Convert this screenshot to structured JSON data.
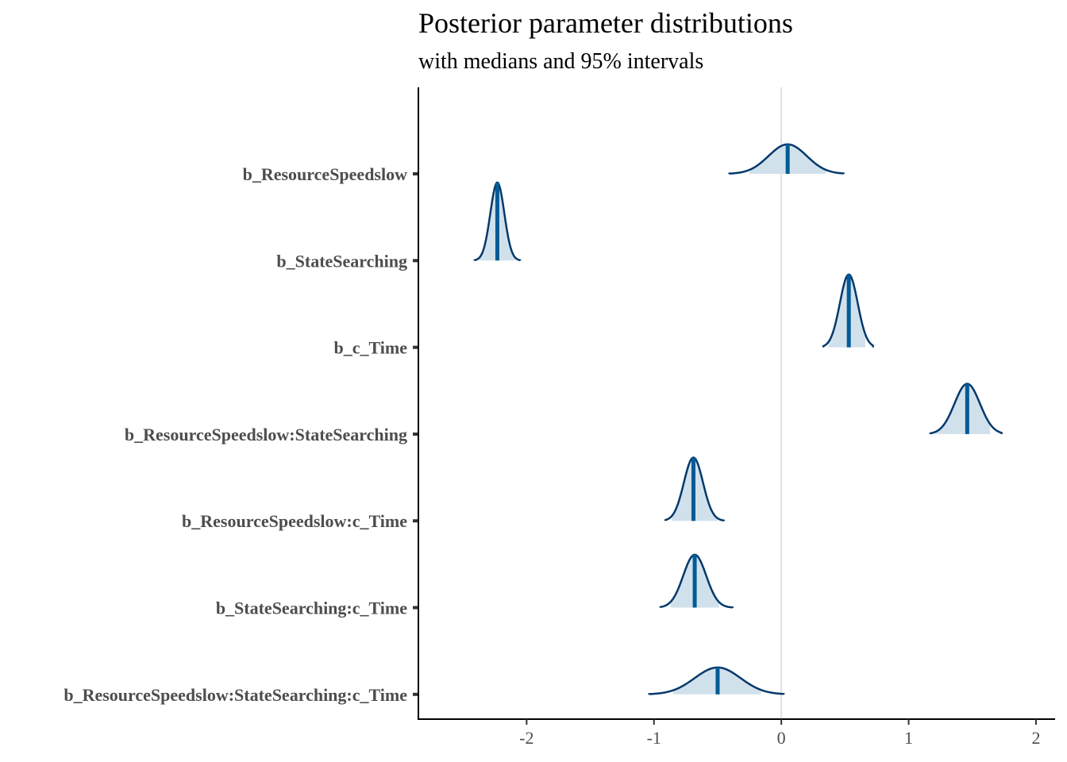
{
  "chart_data": {
    "type": "area",
    "title": "Posterior parameter distributions",
    "subtitle": "with medians and 95% intervals",
    "xlabel": "",
    "ylabel": "",
    "xlim": [
      -2.85,
      2.15
    ],
    "x_ticks": [
      -2,
      -1,
      0,
      1,
      2
    ],
    "x_tick_labels": [
      "-2",
      "-1",
      "0",
      "1",
      "2"
    ],
    "reference_line": 0,
    "colors": {
      "outline": "#03396c",
      "fill": "#d1e1ec",
      "median": "#005b96",
      "reference": "#e0e0e0",
      "axis": "#000000"
    },
    "parameters": [
      {
        "name": "b_ResourceSpeedslow",
        "median": 0.05,
        "ci_low": -0.25,
        "ci_high": 0.35,
        "min": -0.41,
        "max": 0.49,
        "sd": 0.15,
        "peak_height": 0.34
      },
      {
        "name": "b_StateSearching",
        "median": -2.23,
        "ci_low": -2.37,
        "ci_high": -2.09,
        "min": -2.41,
        "max": -2.05,
        "sd": 0.055,
        "peak_height": 0.9
      },
      {
        "name": "b_c_Time",
        "median": 0.53,
        "ci_low": 0.37,
        "ci_high": 0.66,
        "min": 0.33,
        "max": 0.72,
        "sd": 0.07,
        "peak_height": 0.84
      },
      {
        "name": "b_ResourceSpeedslow:StateSearching",
        "median": 1.46,
        "ci_low": 1.21,
        "ci_high": 1.64,
        "min": 1.17,
        "max": 1.73,
        "sd": 0.1,
        "peak_height": 0.58
      },
      {
        "name": "b_ResourceSpeedslow:c_Time",
        "median": -0.69,
        "ci_low": -0.86,
        "ci_high": -0.5,
        "min": -0.91,
        "max": -0.45,
        "sd": 0.075,
        "peak_height": 0.73
      },
      {
        "name": "b_StateSearching:c_Time",
        "median": -0.68,
        "ci_low": -0.87,
        "ci_high": -0.49,
        "min": -0.95,
        "max": -0.38,
        "sd": 0.09,
        "peak_height": 0.61
      },
      {
        "name": "b_ResourceSpeedslow:StateSearching:c_Time",
        "median": -0.5,
        "ci_low": -0.85,
        "ci_high": -0.16,
        "min": -1.04,
        "max": 0.02,
        "sd": 0.18,
        "peak_height": 0.31
      }
    ]
  }
}
